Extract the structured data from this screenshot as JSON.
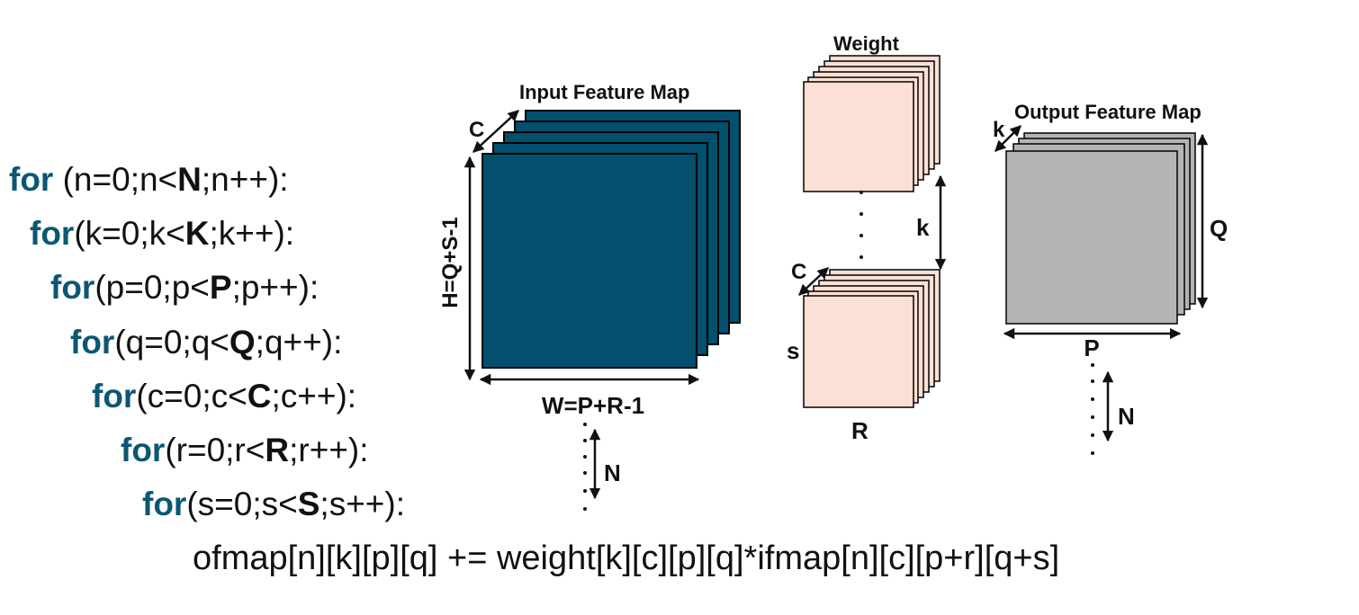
{
  "loops": [
    {
      "kw": "for",
      "pre": " (n=0;n<",
      "bound": "N",
      "post": ";n++):"
    },
    {
      "kw": "for",
      "pre": "(k=0;k<",
      "bound": "K",
      "post": ";k++):"
    },
    {
      "kw": "for",
      "pre": "(p=0;p<",
      "bound": "P",
      "post": ";p++):"
    },
    {
      "kw": "for",
      "pre": "(q=0;q<",
      "bound": "Q",
      "post": ";q++):"
    },
    {
      "kw": "for",
      "pre": "(c=0;c<",
      "bound": "C",
      "post": ";c++):"
    },
    {
      "kw": "for",
      "pre": "(r=0;r<",
      "bound": "R",
      "post": ";r++):"
    },
    {
      "kw": "for",
      "pre": "(s=0;s<",
      "bound": "S",
      "post": ";s++):"
    }
  ],
  "statement": "ofmap[n][k][p][q] += weight[k][c][p][q]*ifmap[n][c][p+r][q+s]",
  "input_fmap": {
    "title": "Input Feature Map",
    "c_label": "C",
    "height_label": "H=Q+S-1",
    "width_label": "W=P+R-1",
    "n_label": "N"
  },
  "weight": {
    "title": "Weight",
    "k_label": "k",
    "c_label": "C",
    "s_label": "s",
    "r_label": "R"
  },
  "output_fmap": {
    "title": "Output Feature Map",
    "k_label": "k",
    "q_label": "Q",
    "p_label": "P",
    "n_label": "N"
  },
  "colors": {
    "keyword": "#0b5773",
    "input": "#02506d",
    "weight": "#fde0d5",
    "output": "#b4b4b4"
  }
}
